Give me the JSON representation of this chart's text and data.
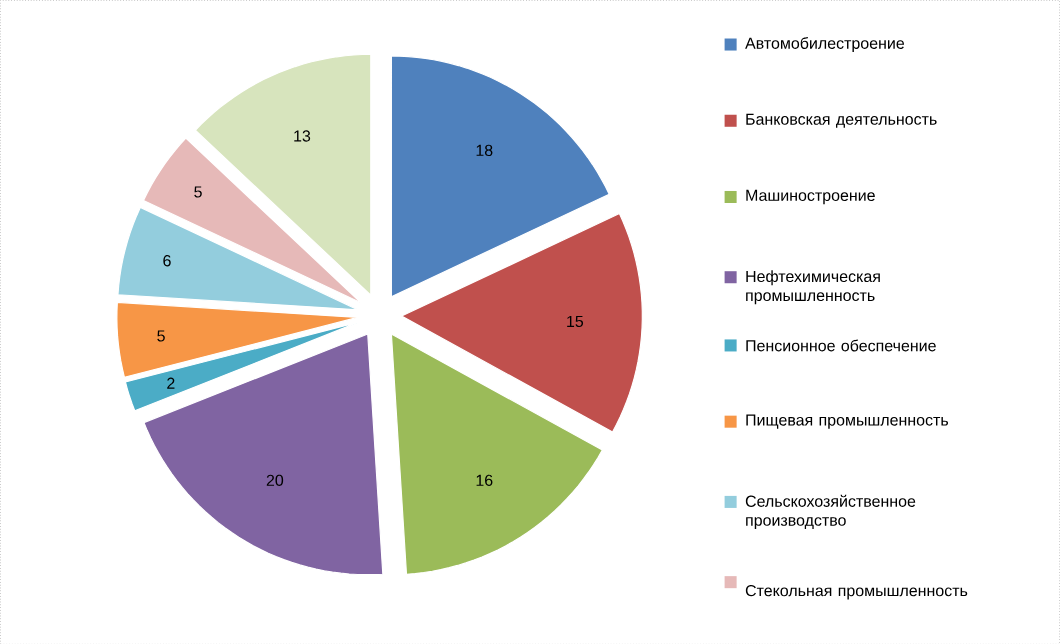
{
  "chart_data": {
    "type": "pie",
    "categories": [
      "Автомобилестроение",
      "Банковская деятельность",
      "Машиностроение",
      "Нефтехимическая промышленность",
      "Пенсионное обеспечение",
      "Пищевая промышленность",
      "Сельскохозяйственное производство",
      "Стекольная промышленность",
      null
    ],
    "values": [
      18,
      15,
      16,
      20,
      2,
      5,
      6,
      5,
      13
    ],
    "colors": [
      "#4f81bd",
      "#c0504d",
      "#9bbb59",
      "#8064a2",
      "#4bacc6",
      "#f79646",
      "#93cddd",
      "#e6b9b8",
      "#d7e4bd"
    ],
    "data_labels": true,
    "legend": "right"
  }
}
